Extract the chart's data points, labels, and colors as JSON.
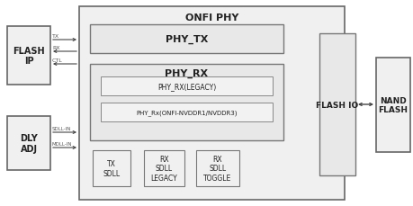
{
  "bg_color": "#ffffff",
  "title": "ONFI PHY",
  "flash_ip_label": "FLASH\nIP",
  "dly_adj_label": "DLY\nADJ",
  "phy_tx_label": "PHY_TX",
  "phy_rx_label": "PHY_RX",
  "phy_rx_legacy_label": "PHY_RX(LEGACY)",
  "phy_rx_onfi_label": "PHY_Rx(ONFI-NVDDR1/NVDDR3)",
  "flash_io_label": "FLASH IO",
  "nand_flash_label": "NAND\nFLASH",
  "tx_sdll_label": "TX\nSDLL",
  "rx_sdll_legacy_label": "RX\nSDLL\nLEGACY",
  "rx_sdll_toggle_label": "RX\nSDLL\nTOGGLE",
  "tx_arrow_label": "TX",
  "rx_arrow_label": "RX",
  "ctl_arrow_label": "CTL",
  "sdll_in_label": "SDLL-IN",
  "mdll_in_label": "MDLL-IN"
}
